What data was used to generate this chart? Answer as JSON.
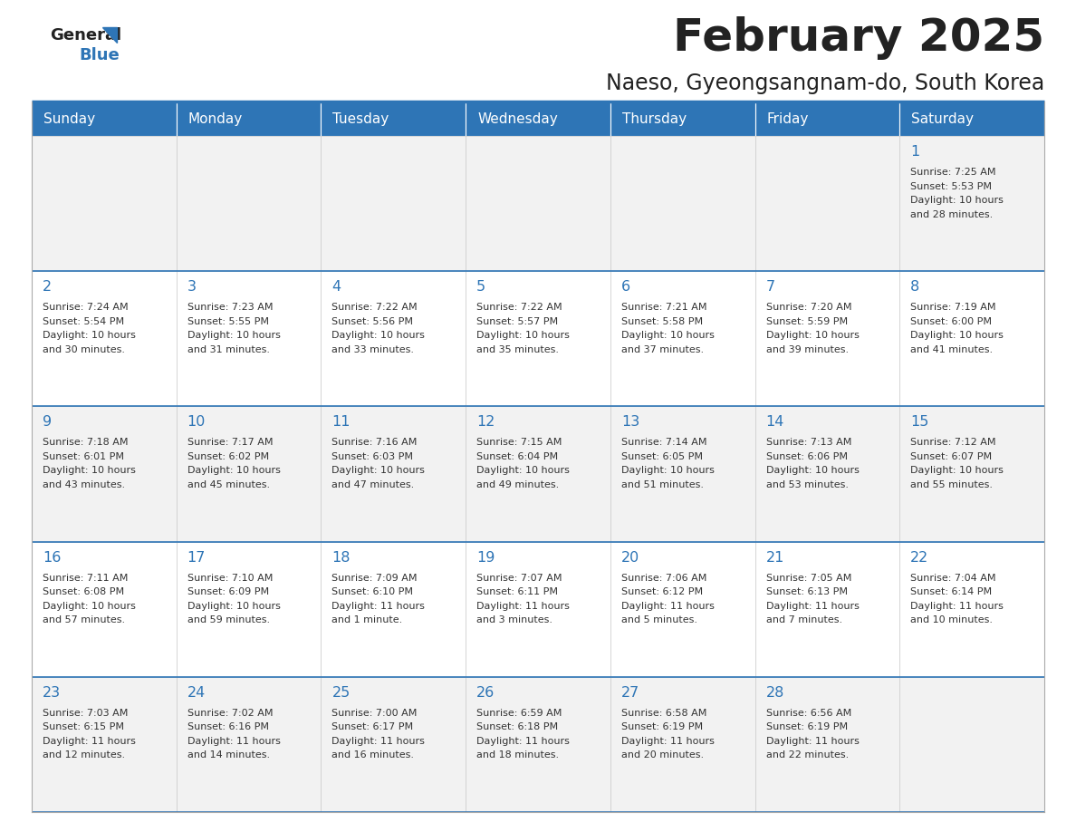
{
  "title": "February 2025",
  "subtitle": "Naeso, Gyeongsangnam-do, South Korea",
  "header_bg": "#2E75B6",
  "header_text": "#FFFFFF",
  "day_names": [
    "Sunday",
    "Monday",
    "Tuesday",
    "Wednesday",
    "Thursday",
    "Friday",
    "Saturday"
  ],
  "cell_bg_odd": "#F2F2F2",
  "cell_bg_even": "#FFFFFF",
  "title_color": "#222222",
  "subtitle_color": "#222222",
  "date_color": "#2E75B6",
  "info_color": "#333333",
  "logo_general_color": "#222222",
  "logo_blue_color": "#2E75B6",
  "sep_line_color": "#2E75B6",
  "calendar": [
    [
      null,
      null,
      null,
      null,
      null,
      null,
      {
        "day": "1",
        "sunrise": "7:25 AM",
        "sunset": "5:53 PM",
        "daylight_line1": "Daylight: 10 hours",
        "daylight_line2": "and 28 minutes."
      }
    ],
    [
      {
        "day": "2",
        "sunrise": "7:24 AM",
        "sunset": "5:54 PM",
        "daylight_line1": "Daylight: 10 hours",
        "daylight_line2": "and 30 minutes."
      },
      {
        "day": "3",
        "sunrise": "7:23 AM",
        "sunset": "5:55 PM",
        "daylight_line1": "Daylight: 10 hours",
        "daylight_line2": "and 31 minutes."
      },
      {
        "day": "4",
        "sunrise": "7:22 AM",
        "sunset": "5:56 PM",
        "daylight_line1": "Daylight: 10 hours",
        "daylight_line2": "and 33 minutes."
      },
      {
        "day": "5",
        "sunrise": "7:22 AM",
        "sunset": "5:57 PM",
        "daylight_line1": "Daylight: 10 hours",
        "daylight_line2": "and 35 minutes."
      },
      {
        "day": "6",
        "sunrise": "7:21 AM",
        "sunset": "5:58 PM",
        "daylight_line1": "Daylight: 10 hours",
        "daylight_line2": "and 37 minutes."
      },
      {
        "day": "7",
        "sunrise": "7:20 AM",
        "sunset": "5:59 PM",
        "daylight_line1": "Daylight: 10 hours",
        "daylight_line2": "and 39 minutes."
      },
      {
        "day": "8",
        "sunrise": "7:19 AM",
        "sunset": "6:00 PM",
        "daylight_line1": "Daylight: 10 hours",
        "daylight_line2": "and 41 minutes."
      }
    ],
    [
      {
        "day": "9",
        "sunrise": "7:18 AM",
        "sunset": "6:01 PM",
        "daylight_line1": "Daylight: 10 hours",
        "daylight_line2": "and 43 minutes."
      },
      {
        "day": "10",
        "sunrise": "7:17 AM",
        "sunset": "6:02 PM",
        "daylight_line1": "Daylight: 10 hours",
        "daylight_line2": "and 45 minutes."
      },
      {
        "day": "11",
        "sunrise": "7:16 AM",
        "sunset": "6:03 PM",
        "daylight_line1": "Daylight: 10 hours",
        "daylight_line2": "and 47 minutes."
      },
      {
        "day": "12",
        "sunrise": "7:15 AM",
        "sunset": "6:04 PM",
        "daylight_line1": "Daylight: 10 hours",
        "daylight_line2": "and 49 minutes."
      },
      {
        "day": "13",
        "sunrise": "7:14 AM",
        "sunset": "6:05 PM",
        "daylight_line1": "Daylight: 10 hours",
        "daylight_line2": "and 51 minutes."
      },
      {
        "day": "14",
        "sunrise": "7:13 AM",
        "sunset": "6:06 PM",
        "daylight_line1": "Daylight: 10 hours",
        "daylight_line2": "and 53 minutes."
      },
      {
        "day": "15",
        "sunrise": "7:12 AM",
        "sunset": "6:07 PM",
        "daylight_line1": "Daylight: 10 hours",
        "daylight_line2": "and 55 minutes."
      }
    ],
    [
      {
        "day": "16",
        "sunrise": "7:11 AM",
        "sunset": "6:08 PM",
        "daylight_line1": "Daylight: 10 hours",
        "daylight_line2": "and 57 minutes."
      },
      {
        "day": "17",
        "sunrise": "7:10 AM",
        "sunset": "6:09 PM",
        "daylight_line1": "Daylight: 10 hours",
        "daylight_line2": "and 59 minutes."
      },
      {
        "day": "18",
        "sunrise": "7:09 AM",
        "sunset": "6:10 PM",
        "daylight_line1": "Daylight: 11 hours",
        "daylight_line2": "and 1 minute."
      },
      {
        "day": "19",
        "sunrise": "7:07 AM",
        "sunset": "6:11 PM",
        "daylight_line1": "Daylight: 11 hours",
        "daylight_line2": "and 3 minutes."
      },
      {
        "day": "20",
        "sunrise": "7:06 AM",
        "sunset": "6:12 PM",
        "daylight_line1": "Daylight: 11 hours",
        "daylight_line2": "and 5 minutes."
      },
      {
        "day": "21",
        "sunrise": "7:05 AM",
        "sunset": "6:13 PM",
        "daylight_line1": "Daylight: 11 hours",
        "daylight_line2": "and 7 minutes."
      },
      {
        "day": "22",
        "sunrise": "7:04 AM",
        "sunset": "6:14 PM",
        "daylight_line1": "Daylight: 11 hours",
        "daylight_line2": "and 10 minutes."
      }
    ],
    [
      {
        "day": "23",
        "sunrise": "7:03 AM",
        "sunset": "6:15 PM",
        "daylight_line1": "Daylight: 11 hours",
        "daylight_line2": "and 12 minutes."
      },
      {
        "day": "24",
        "sunrise": "7:02 AM",
        "sunset": "6:16 PM",
        "daylight_line1": "Daylight: 11 hours",
        "daylight_line2": "and 14 minutes."
      },
      {
        "day": "25",
        "sunrise": "7:00 AM",
        "sunset": "6:17 PM",
        "daylight_line1": "Daylight: 11 hours",
        "daylight_line2": "and 16 minutes."
      },
      {
        "day": "26",
        "sunrise": "6:59 AM",
        "sunset": "6:18 PM",
        "daylight_line1": "Daylight: 11 hours",
        "daylight_line2": "and 18 minutes."
      },
      {
        "day": "27",
        "sunrise": "6:58 AM",
        "sunset": "6:19 PM",
        "daylight_line1": "Daylight: 11 hours",
        "daylight_line2": "and 20 minutes."
      },
      {
        "day": "28",
        "sunrise": "6:56 AM",
        "sunset": "6:19 PM",
        "daylight_line1": "Daylight: 11 hours",
        "daylight_line2": "and 22 minutes."
      },
      null
    ]
  ]
}
